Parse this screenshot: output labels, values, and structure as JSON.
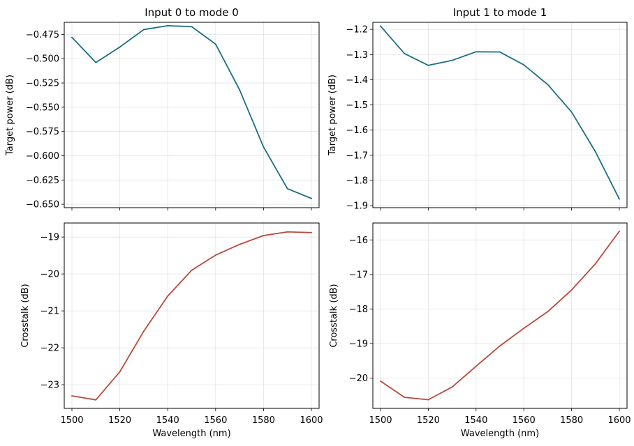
{
  "figure": {
    "colors": {
      "target": "#1a6e85",
      "crosstalk": "#b94a3c"
    }
  },
  "chart_data": [
    {
      "type": "line",
      "title": "Input 0 to mode 0",
      "xlabel": "",
      "ylabel": "Target power (dB)",
      "x": [
        1500,
        1510,
        1520,
        1530,
        1540,
        1550,
        1560,
        1570,
        1580,
        1590,
        1600
      ],
      "series": [
        {
          "values": [
            -0.478,
            -0.504,
            -0.488,
            -0.47,
            -0.466,
            -0.467,
            -0.485,
            -0.532,
            -0.591,
            -0.634,
            -0.644
          ]
        }
      ],
      "xlim": [
        1500,
        1600
      ],
      "ylim": [
        -0.6535,
        -0.4625
      ],
      "xticks": [
        1500,
        1520,
        1540,
        1560,
        1580,
        1600
      ],
      "yticks": [
        -0.475,
        -0.5,
        -0.525,
        -0.55,
        -0.575,
        -0.6,
        -0.625,
        -0.65
      ],
      "ytick_labels": [
        "−0.475",
        "−0.500",
        "−0.525",
        "−0.550",
        "−0.575",
        "−0.600",
        "−0.625",
        "−0.650"
      ],
      "show_xtick_labels": false,
      "color": "target",
      "grid": true
    },
    {
      "type": "line",
      "title": "Input 1 to mode 1",
      "xlabel": "",
      "ylabel": "Target power (dB)",
      "x": [
        1500,
        1510,
        1520,
        1530,
        1540,
        1550,
        1560,
        1570,
        1580,
        1590,
        1600
      ],
      "series": [
        {
          "values": [
            -1.187,
            -1.296,
            -1.343,
            -1.323,
            -1.289,
            -1.29,
            -1.341,
            -1.419,
            -1.528,
            -1.686,
            -1.874
          ]
        }
      ],
      "xlim": [
        1500,
        1600
      ],
      "ylim": [
        -1.908,
        -1.172
      ],
      "xticks": [
        1500,
        1520,
        1540,
        1560,
        1580,
        1600
      ],
      "yticks": [
        -1.2,
        -1.3,
        -1.4,
        -1.5,
        -1.6,
        -1.7,
        -1.8,
        -1.9
      ],
      "ytick_labels": [
        "−1.2",
        "−1.3",
        "−1.4",
        "−1.5",
        "−1.6",
        "−1.7",
        "−1.8",
        "−1.9"
      ],
      "show_xtick_labels": false,
      "color": "target",
      "grid": true
    },
    {
      "type": "line",
      "title": "",
      "xlabel": "Wavelength (nm)",
      "ylabel": "Crosstalk (dB)",
      "x": [
        1500,
        1510,
        1520,
        1530,
        1540,
        1550,
        1560,
        1570,
        1580,
        1590,
        1600
      ],
      "series": [
        {
          "values": [
            -23.3,
            -23.41,
            -22.65,
            -21.55,
            -20.6,
            -19.9,
            -19.49,
            -19.2,
            -18.96,
            -18.86,
            -18.88
          ]
        }
      ],
      "xlim": [
        1500,
        1600
      ],
      "ylim": [
        -23.64,
        -18.62
      ],
      "xticks": [
        1500,
        1520,
        1540,
        1560,
        1580,
        1600
      ],
      "yticks": [
        -19,
        -20,
        -21,
        -22,
        -23
      ],
      "ytick_labels": [
        "−19",
        "−20",
        "−21",
        "−22",
        "−23"
      ],
      "xtick_labels": [
        "1500",
        "1520",
        "1540",
        "1560",
        "1580",
        "1600"
      ],
      "show_xtick_labels": true,
      "color": "crosstalk",
      "grid": true
    },
    {
      "type": "line",
      "title": "",
      "xlabel": "Wavelength (nm)",
      "ylabel": "Crosstalk (dB)",
      "x": [
        1500,
        1510,
        1520,
        1530,
        1540,
        1550,
        1560,
        1570,
        1580,
        1590,
        1600
      ],
      "series": [
        {
          "values": [
            -20.09,
            -20.56,
            -20.63,
            -20.26,
            -19.66,
            -19.07,
            -18.56,
            -18.08,
            -17.45,
            -16.69,
            -15.75
          ]
        }
      ],
      "xlim": [
        1500,
        1600
      ],
      "ylim": [
        -20.88,
        -15.51
      ],
      "xticks": [
        1500,
        1520,
        1540,
        1560,
        1580,
        1600
      ],
      "yticks": [
        -16,
        -17,
        -18,
        -19,
        -20
      ],
      "ytick_labels": [
        "−16",
        "−17",
        "−18",
        "−19",
        "−20"
      ],
      "xtick_labels": [
        "1500",
        "1520",
        "1540",
        "1560",
        "1580",
        "1600"
      ],
      "show_xtick_labels": true,
      "color": "crosstalk",
      "grid": true
    }
  ]
}
